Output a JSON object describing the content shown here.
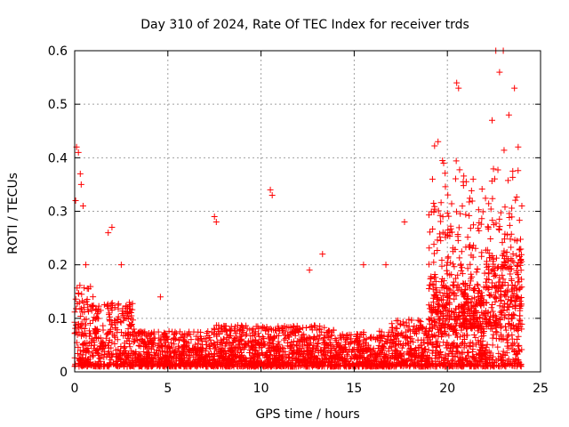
{
  "chart_data": {
    "type": "scatter",
    "title": "Day 310 of 2024, Rate Of TEC Index for receiver trds",
    "xlabel": "GPS time / hours",
    "ylabel": "ROTI / TECUs",
    "xlim": [
      0,
      25
    ],
    "ylim": [
      0,
      0.6
    ],
    "xticks": [
      0,
      5,
      10,
      15,
      20,
      25
    ],
    "yticks": [
      0,
      0.1,
      0.2,
      0.3,
      0.4,
      0.5,
      0.6
    ],
    "grid": true,
    "marker": "+",
    "color": "#ff0000",
    "series": [
      {
        "name": "ROTI",
        "note": "dense scatter; representative peak values listed",
        "x": [
          0.05,
          0.1,
          0.2,
          0.3,
          0.35,
          0.45,
          0.6,
          1.8,
          2.0,
          2.5,
          4.6,
          7.5,
          7.6,
          10.5,
          10.6,
          12.6,
          13.3,
          15.5,
          16.7,
          17.7,
          19.2,
          19.5,
          19.8,
          20.5,
          20.6,
          22.4,
          22.6,
          22.8,
          23.0,
          23.3,
          23.6,
          23.8
        ],
        "y": [
          0.32,
          0.42,
          0.41,
          0.37,
          0.35,
          0.31,
          0.2,
          0.26,
          0.27,
          0.2,
          0.14,
          0.29,
          0.28,
          0.34,
          0.33,
          0.19,
          0.22,
          0.2,
          0.2,
          0.28,
          0.36,
          0.43,
          0.39,
          0.54,
          0.53,
          0.47,
          0.6,
          0.56,
          0.6,
          0.48,
          0.53,
          0.42
        ]
      }
    ]
  }
}
